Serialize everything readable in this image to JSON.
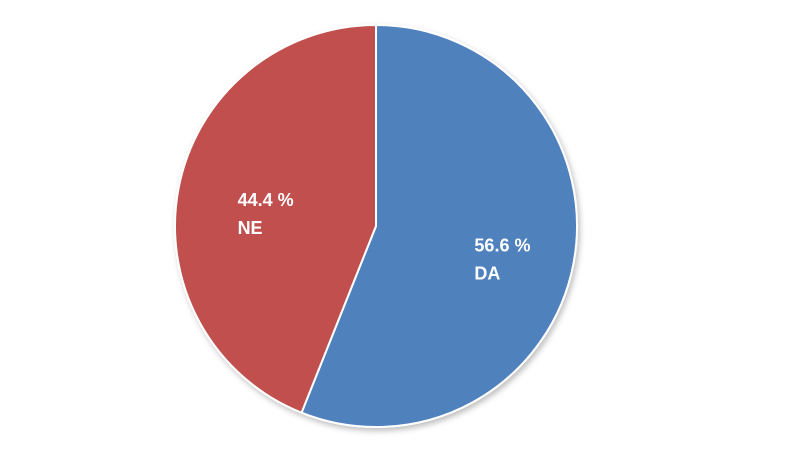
{
  "chart_data": {
    "type": "pie",
    "categories": [
      "DA",
      "NE"
    ],
    "values": [
      56.6,
      44.4
    ],
    "value_labels": [
      "56.6 %",
      "44.4 %"
    ],
    "colors": [
      "#4f81bd",
      "#c0504d"
    ]
  }
}
